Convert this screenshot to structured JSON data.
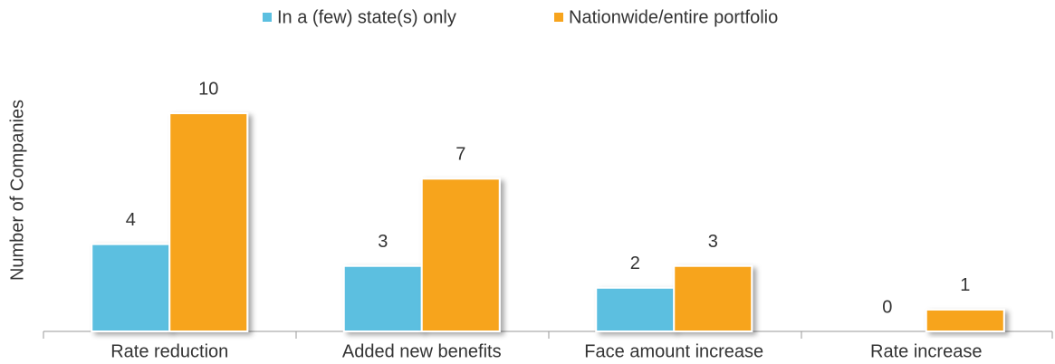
{
  "chart_data": {
    "type": "bar",
    "y_axis_label": "Number of Companies",
    "categories": [
      "Rate reduction",
      "Added new benefits",
      "Face amount increase",
      "Rate increase"
    ],
    "series": [
      {
        "name": "In a (few) state(s) only",
        "color": "#5bbfe0",
        "values": [
          4,
          3,
          2,
          0
        ]
      },
      {
        "name": "Nationwide/entire portfolio",
        "color": "#f7a41d",
        "values": [
          10,
          7,
          3,
          1
        ]
      }
    ],
    "ylim": [
      0,
      11
    ],
    "legend": "top"
  }
}
